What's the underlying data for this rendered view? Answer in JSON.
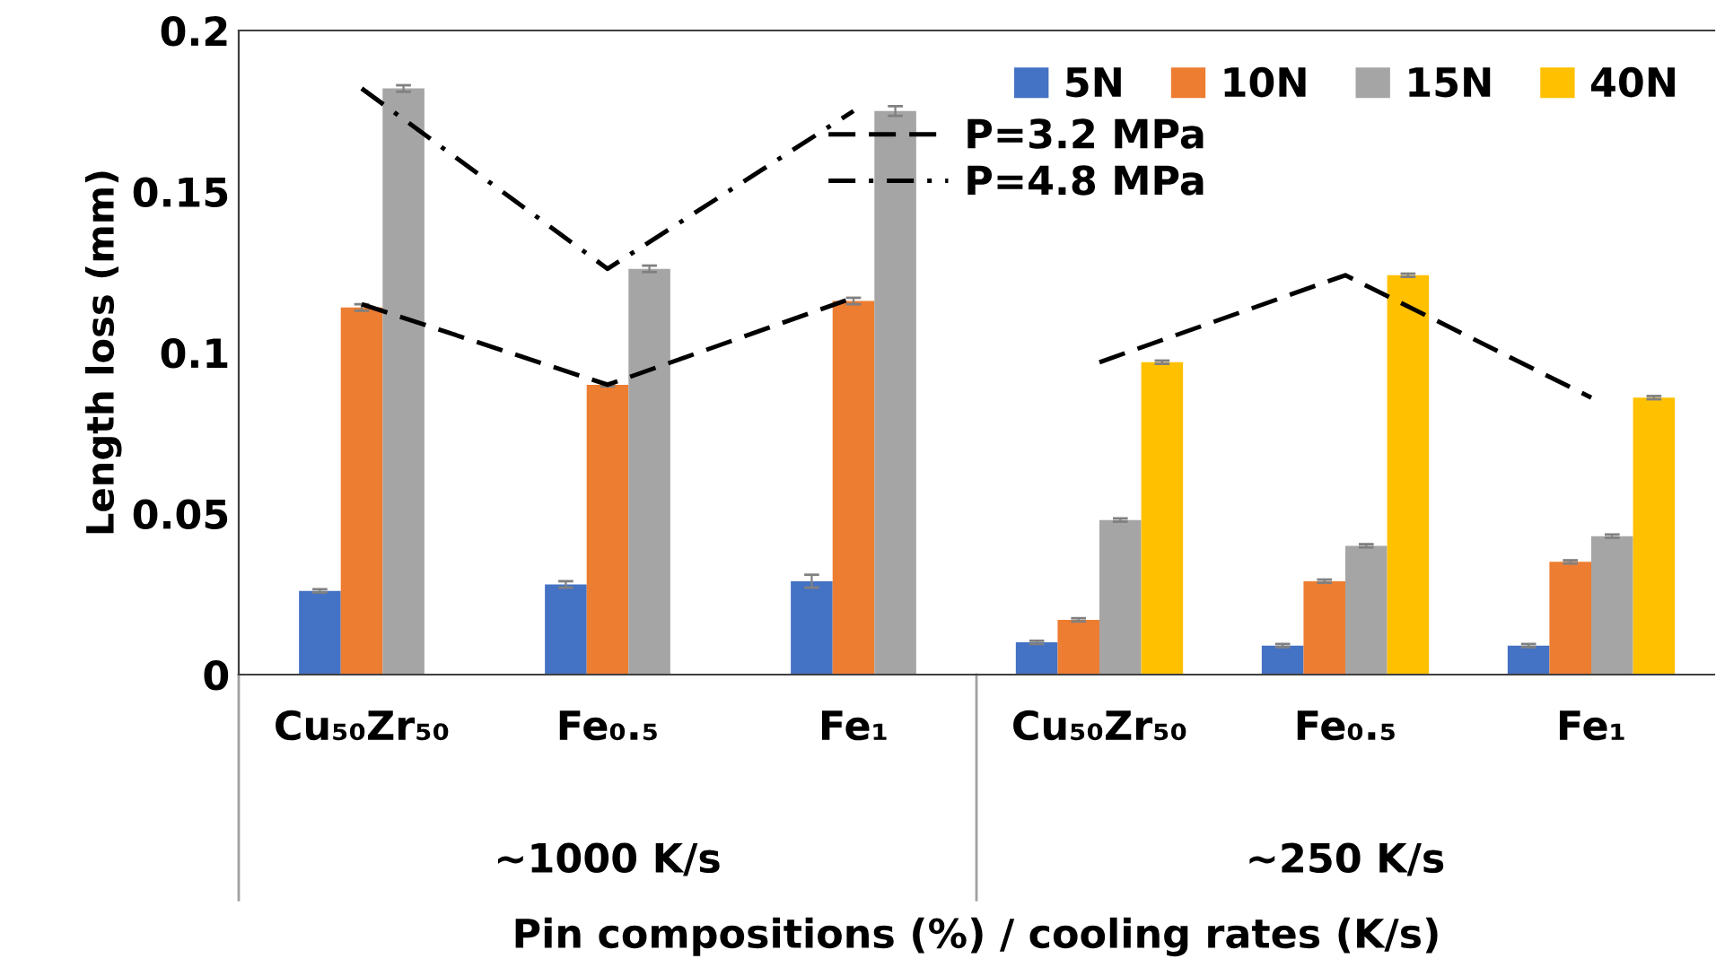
{
  "chart_data": {
    "type": "bar",
    "xlabel": "Pin compositions (%) / cooling rates (K/s)",
    "ylabel": "Length loss (mm)",
    "categories": [
      "Cu₅₀Zr₅₀",
      "Fe₀.₅",
      "Fe₁",
      "Cu₅₀Zr₅₀",
      "Fe₀.₅",
      "Fe₁"
    ],
    "series": [
      {
        "name": "5N",
        "color": "#4472c4",
        "values": [
          0.026,
          0.028,
          0.029,
          0.01,
          0.009,
          0.009
        ],
        "errors": [
          0.0005,
          0.001,
          0.002,
          0.0005,
          0.0005,
          0.0005
        ]
      },
      {
        "name": "10N",
        "color": "#ed7d31",
        "values": [
          0.114,
          0.09,
          0.116,
          0.017,
          0.029,
          0.035
        ],
        "errors": [
          0.001,
          0.0005,
          0.001,
          0.0005,
          0.0005,
          0.0005
        ]
      },
      {
        "name": "15N",
        "color": "#a5a5a5",
        "values": [
          0.182,
          0.126,
          0.175,
          0.048,
          0.04,
          0.043
        ],
        "errors": [
          0.001,
          0.001,
          0.0015,
          0.0005,
          0.0005,
          0.0005
        ]
      },
      {
        "name": "40N",
        "color": "#ffc000",
        "values": [
          null,
          null,
          null,
          0.097,
          0.124,
          0.086
        ],
        "errors": [
          null,
          null,
          null,
          0.0005,
          0.0005,
          0.0005
        ]
      },
      {
        "name": "P=3.2 MPa",
        "type": "line",
        "color": "#000000",
        "line_style": "dashed",
        "values": [
          0.115,
          0.09,
          0.117,
          null,
          null,
          null
        ]
      },
      {
        "type": "line",
        "color": "#000000",
        "line_style": "dashed",
        "values": [
          null,
          null,
          null,
          0.097,
          0.124,
          0.086
        ]
      },
      {
        "name": "P=4.8 MPa",
        "type": "line",
        "color": "#000000",
        "line_style": "dashdot",
        "values": [
          0.182,
          0.126,
          0.175,
          null,
          null,
          null
        ]
      }
    ],
    "annotations": [
      "~1000 K/s",
      "~250 K/s"
    ],
    "ylim": [
      0,
      0.2
    ],
    "yticks": [
      0,
      {
        "value": 0.05,
        "label": "0.05"
      },
      {
        "value": 0.1,
        "label": "0.1"
      },
      {
        "value": 0.15,
        "label": "0.15"
      },
      {
        "value": 0.2,
        "label": "0.2"
      }
    ],
    "grid": false,
    "legend": "top right"
  }
}
